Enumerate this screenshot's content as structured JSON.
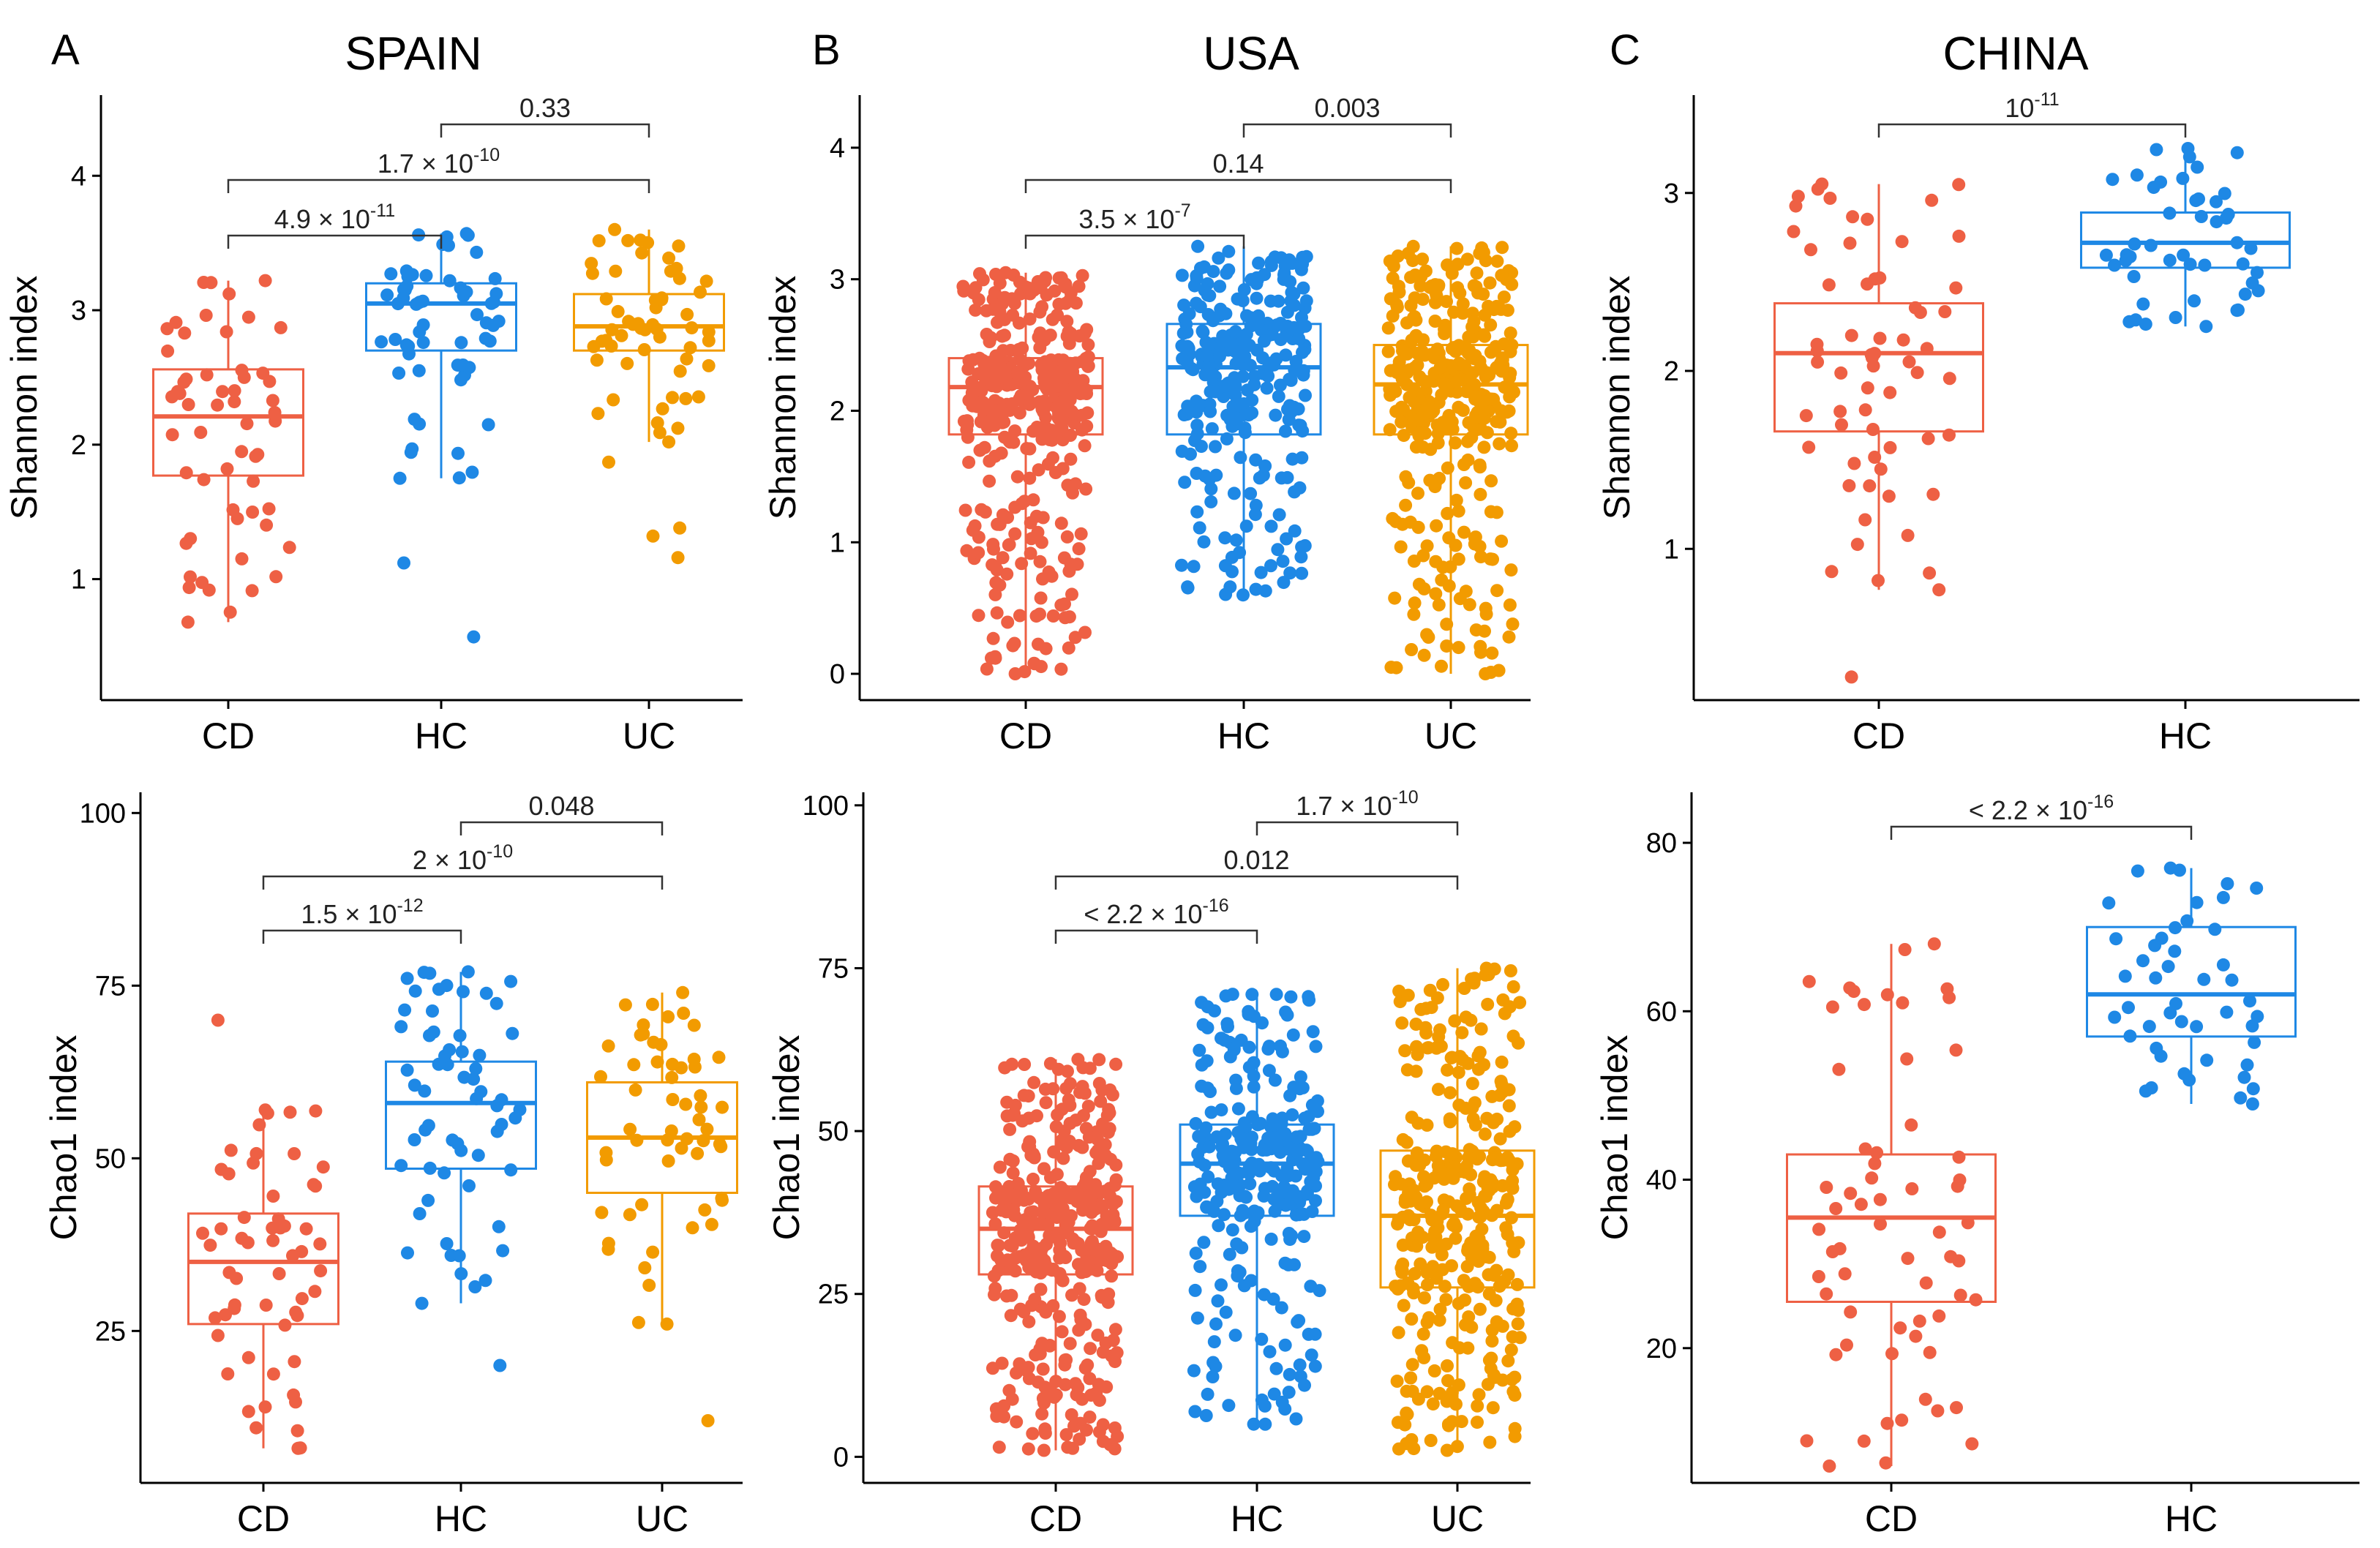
{
  "figure": {
    "colors": {
      "CD": "#EE6044",
      "HC": "#1E88E5",
      "UC": "#F29B00"
    }
  },
  "chart_data": [
    {
      "id": "spain_shannon",
      "type": "box",
      "letter": "A",
      "title": "SPAIN",
      "ylabel": "Shannon index",
      "ylim": [
        0.1,
        4.6
      ],
      "yticks": [
        1,
        2,
        3,
        4
      ],
      "categories": [
        "CD",
        "HC",
        "UC"
      ],
      "boxes": [
        {
          "name": "CD",
          "min": 0.68,
          "q1": 1.77,
          "median": 2.21,
          "q3": 2.56,
          "max": 3.22,
          "n": 55,
          "outliers": []
        },
        {
          "name": "HC",
          "min": 1.75,
          "q1": 2.7,
          "median": 3.05,
          "q3": 3.2,
          "max": 3.57,
          "n": 60,
          "outliers": [
            1.12,
            0.57
          ]
        },
        {
          "name": "UC",
          "min": 2.02,
          "q1": 2.7,
          "median": 2.88,
          "q3": 3.12,
          "max": 3.6,
          "n": 55,
          "outliers": [
            1.87,
            1.16,
            1.32,
            1.38
          ]
        }
      ],
      "comparisons": [
        {
          "a": "HC",
          "b": "UC",
          "mantissa": "0.33",
          "exp": ""
        },
        {
          "a": "CD",
          "b": "UC",
          "mantissa": "1.7 × 10",
          "exp": "-10"
        },
        {
          "a": "CD",
          "b": "HC",
          "mantissa": "4.9 × 10",
          "exp": "-11"
        }
      ]
    },
    {
      "id": "usa_shannon",
      "type": "box",
      "letter": "B",
      "title": "USA",
      "ylabel": "Shannon index",
      "ylim": [
        -0.2,
        4.4
      ],
      "yticks": [
        0,
        1,
        2,
        3,
        4
      ],
      "categories": [
        "CD",
        "HC",
        "UC"
      ],
      "boxes": [
        {
          "name": "CD",
          "min": 0.0,
          "q1": 1.82,
          "median": 2.18,
          "q3": 2.4,
          "max": 3.05,
          "n": 400,
          "outliers": []
        },
        {
          "name": "HC",
          "min": 0.6,
          "q1": 1.82,
          "median": 2.33,
          "q3": 2.66,
          "max": 3.25,
          "n": 280,
          "outliers": []
        },
        {
          "name": "UC",
          "min": 0.0,
          "q1": 1.82,
          "median": 2.2,
          "q3": 2.5,
          "max": 3.25,
          "n": 350,
          "outliers": []
        }
      ],
      "comparisons": [
        {
          "a": "HC",
          "b": "UC",
          "mantissa": "0.003",
          "exp": ""
        },
        {
          "a": "CD",
          "b": "UC",
          "mantissa": "0.14",
          "exp": ""
        },
        {
          "a": "CD",
          "b": "HC",
          "mantissa": "3.5 × 10",
          "exp": "-7"
        }
      ]
    },
    {
      "id": "china_shannon",
      "type": "box",
      "letter": "C",
      "title": "CHINA",
      "ylabel": "Shannon index",
      "ylim": [
        0.15,
        3.55
      ],
      "yticks": [
        1,
        2,
        3
      ],
      "categories": [
        "CD",
        "HC"
      ],
      "boxes": [
        {
          "name": "CD",
          "min": 0.77,
          "q1": 1.66,
          "median": 2.1,
          "q3": 2.38,
          "max": 3.05,
          "n": 60,
          "outliers": [
            0.28
          ]
        },
        {
          "name": "HC",
          "min": 2.25,
          "q1": 2.58,
          "median": 2.72,
          "q3": 2.89,
          "max": 3.25,
          "n": 45,
          "outliers": []
        }
      ],
      "comparisons": [
        {
          "a": "CD",
          "b": "HC",
          "mantissa": "10",
          "exp": "-11"
        }
      ]
    },
    {
      "id": "spain_chao1",
      "type": "box",
      "letter": "",
      "title": "",
      "ylabel": "Chao1 index",
      "ylim": [
        3,
        103
      ],
      "yticks": [
        25,
        50,
        75,
        100
      ],
      "categories": [
        "CD",
        "HC",
        "UC"
      ],
      "boxes": [
        {
          "name": "CD",
          "min": 8,
          "q1": 26,
          "median": 35,
          "q3": 42,
          "max": 57,
          "n": 55,
          "outliers": [
            70
          ]
        },
        {
          "name": "HC",
          "min": 29,
          "q1": 48.5,
          "median": 58,
          "q3": 64,
          "max": 77,
          "n": 60,
          "outliers": [
            20
          ]
        },
        {
          "name": "UC",
          "min": 26,
          "q1": 45,
          "median": 53,
          "q3": 61,
          "max": 74,
          "n": 55,
          "outliers": [
            12
          ]
        }
      ],
      "comparisons": [
        {
          "a": "HC",
          "b": "UC",
          "mantissa": "0.048",
          "exp": ""
        },
        {
          "a": "CD",
          "b": "UC",
          "mantissa": "2 × 10",
          "exp": "-10"
        },
        {
          "a": "CD",
          "b": "HC",
          "mantissa": "1.5 × 10",
          "exp": "-12"
        }
      ]
    },
    {
      "id": "usa_chao1",
      "type": "box",
      "letter": "",
      "title": "",
      "ylabel": "Chao1 index",
      "ylim": [
        -4,
        102
      ],
      "yticks": [
        0,
        25,
        50,
        75,
        100
      ],
      "categories": [
        "CD",
        "HC",
        "UC"
      ],
      "boxes": [
        {
          "name": "CD",
          "min": 1,
          "q1": 28,
          "median": 35,
          "q3": 41.5,
          "max": 61,
          "n": 400,
          "outliers": []
        },
        {
          "name": "HC",
          "min": 5,
          "q1": 37,
          "median": 45,
          "q3": 51,
          "max": 71,
          "n": 280,
          "outliers": []
        },
        {
          "name": "UC",
          "min": 1,
          "q1": 26,
          "median": 37,
          "q3": 47,
          "max": 75,
          "n": 350,
          "outliers": []
        }
      ],
      "comparisons": [
        {
          "a": "HC",
          "b": "UC",
          "mantissa": "1.7 × 10",
          "exp": "-10"
        },
        {
          "a": "CD",
          "b": "UC",
          "mantissa": "0.012",
          "exp": ""
        },
        {
          "a": "CD",
          "b": "HC",
          "mantissa": "< 2.2 × 10",
          "exp": "-16"
        }
      ]
    },
    {
      "id": "china_chao1",
      "type": "box",
      "letter": "",
      "title": "",
      "ylabel": "Chao1 index",
      "ylim": [
        4,
        86
      ],
      "yticks": [
        20,
        40,
        60,
        80
      ],
      "categories": [
        "CD",
        "HC"
      ],
      "boxes": [
        {
          "name": "CD",
          "min": 6,
          "q1": 25.5,
          "median": 35.5,
          "q3": 43,
          "max": 68,
          "n": 60,
          "outliers": []
        },
        {
          "name": "HC",
          "min": 49,
          "q1": 57,
          "median": 62,
          "q3": 70,
          "max": 77,
          "n": 45,
          "outliers": []
        }
      ],
      "comparisons": [
        {
          "a": "CD",
          "b": "HC",
          "mantissa": "< 2.2 × 10",
          "exp": "-16"
        }
      ]
    }
  ]
}
